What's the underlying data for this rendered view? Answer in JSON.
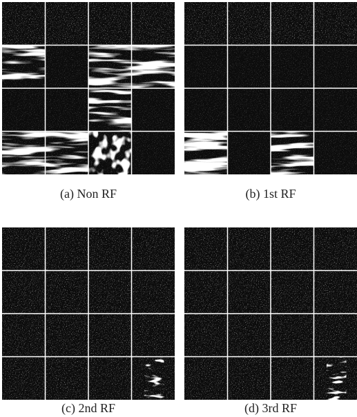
{
  "panels": [
    {
      "caption": "(a) Non RF"
    },
    {
      "caption": "(b) 1st RF"
    },
    {
      "caption": "(c) 2nd RF"
    },
    {
      "caption": "(d) 3rd RF"
    }
  ]
}
